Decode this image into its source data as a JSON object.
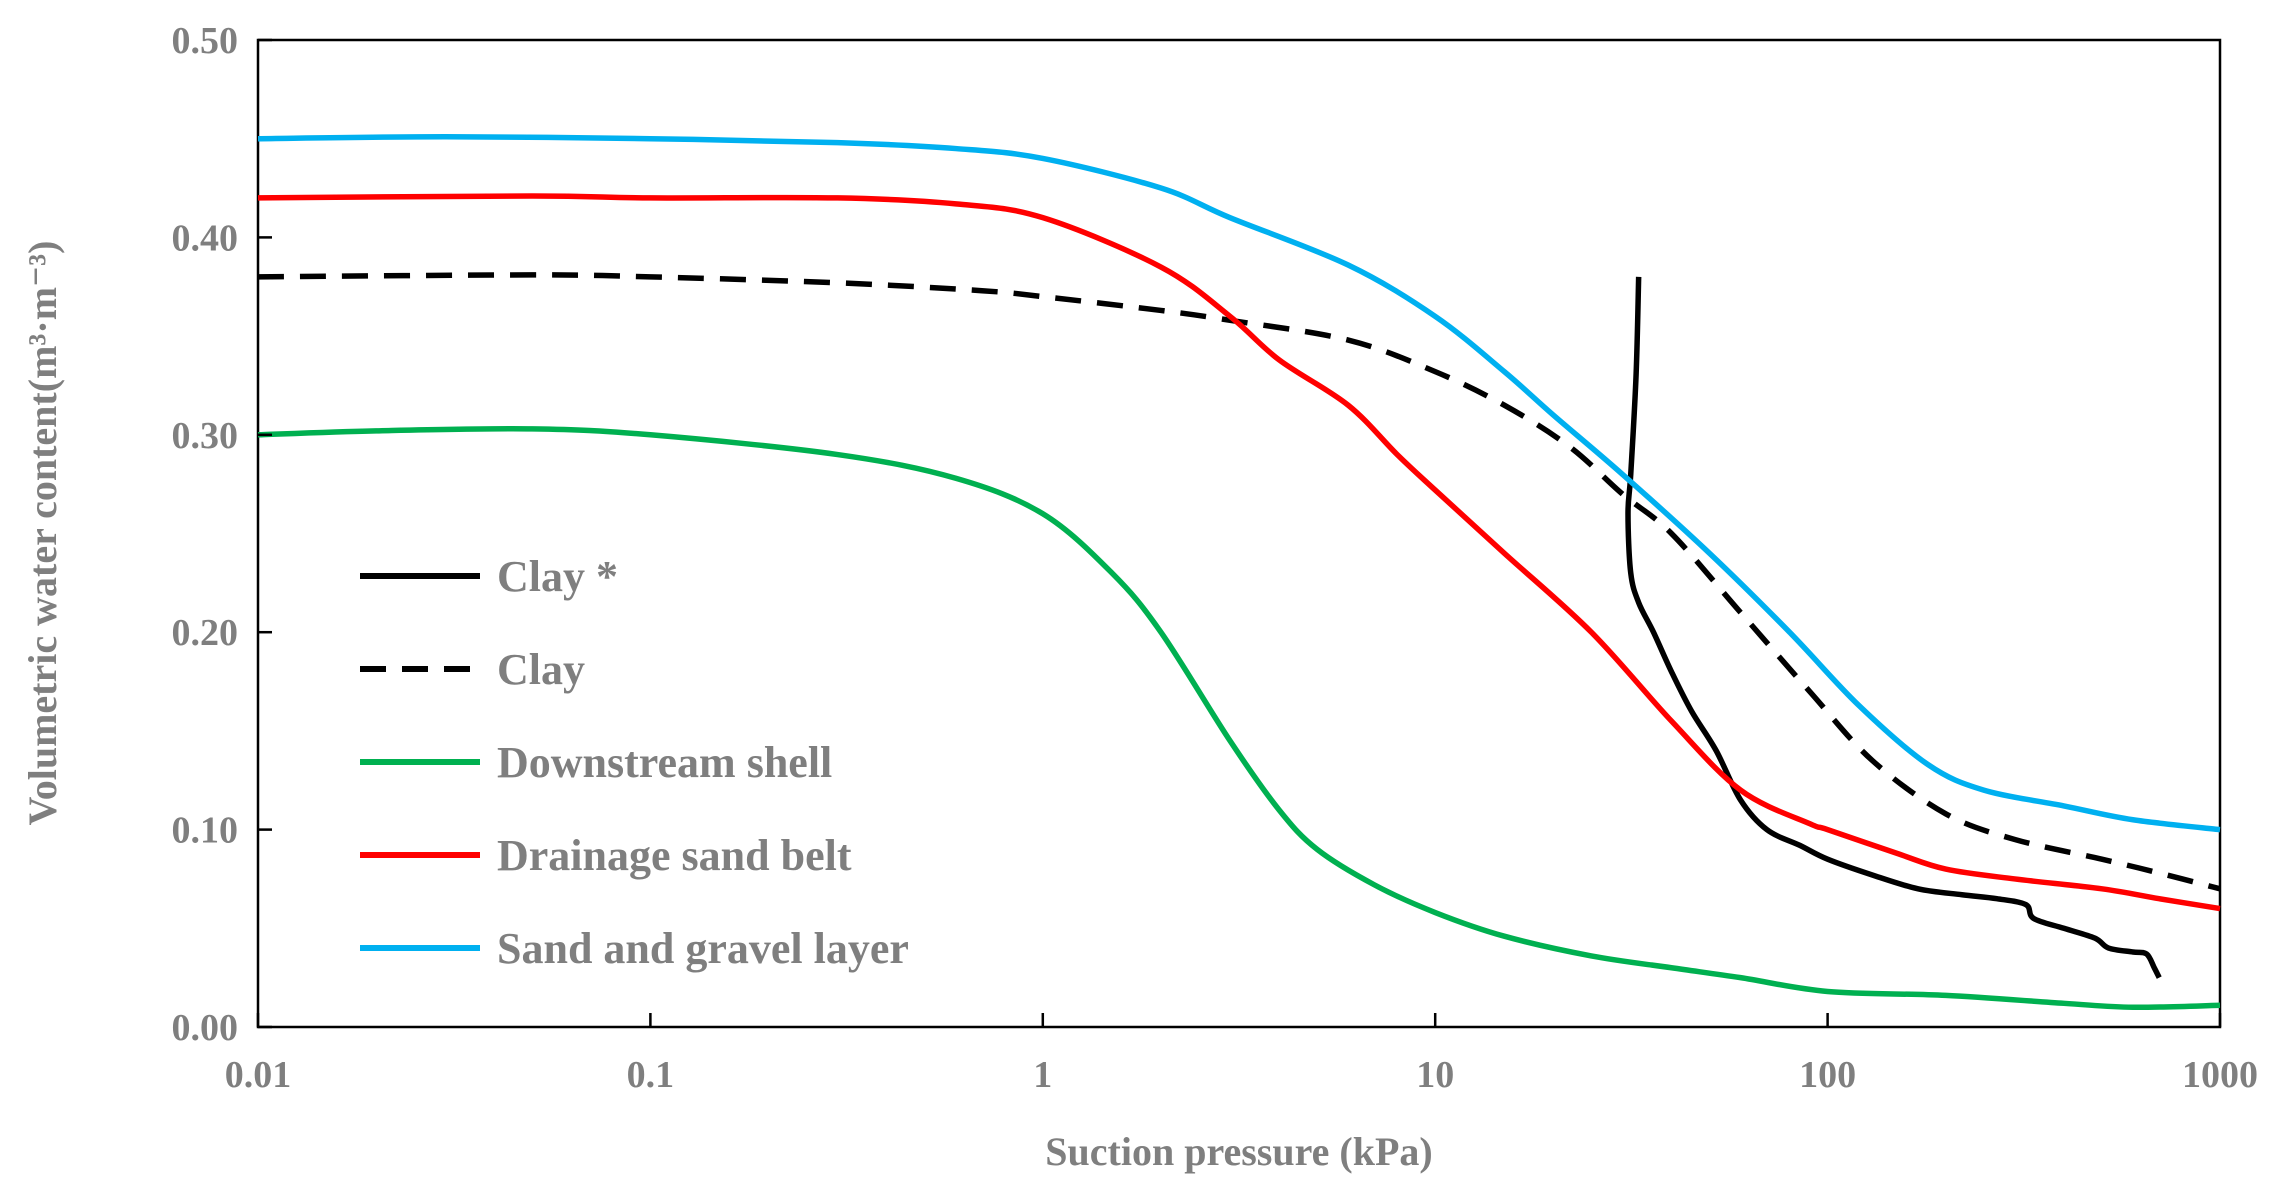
{
  "chart_data": {
    "type": "line",
    "title": "",
    "xlabel": "Suction pressure (kPa)",
    "ylabel": "Volumetric water content(m³·m⁻³)",
    "x_scale": "log",
    "xlim": [
      0.01,
      1000
    ],
    "ylim": [
      0,
      0.5
    ],
    "x_ticks": [
      0.01,
      0.1,
      1,
      10,
      100,
      1000
    ],
    "x_tick_labels": [
      "0.01",
      "0.1",
      "1",
      "10",
      "100",
      "1000"
    ],
    "y_ticks": [
      0,
      0.1,
      0.2,
      0.3,
      0.4,
      0.5
    ],
    "y_tick_labels": [
      "0.00",
      "0.10",
      "0.20",
      "0.30",
      "0.40",
      "0.50"
    ],
    "grid": false,
    "legend_position": "center-left",
    "series": [
      {
        "name": "Clay *",
        "color": "#000000",
        "dash": "solid",
        "points": [
          [
            33,
            0.38
          ],
          [
            32.5,
            0.33
          ],
          [
            31.5,
            0.28
          ],
          [
            31,
            0.26
          ],
          [
            31.5,
            0.23
          ],
          [
            33,
            0.215
          ],
          [
            36,
            0.2
          ],
          [
            40,
            0.18
          ],
          [
            45,
            0.16
          ],
          [
            52,
            0.14
          ],
          [
            60,
            0.115
          ],
          [
            70,
            0.1
          ],
          [
            85,
            0.092
          ],
          [
            100,
            0.085
          ],
          [
            130,
            0.077
          ],
          [
            170,
            0.07
          ],
          [
            220,
            0.067
          ],
          [
            270,
            0.065
          ],
          [
            320,
            0.062
          ],
          [
            335,
            0.055
          ],
          [
            400,
            0.05
          ],
          [
            480,
            0.045
          ],
          [
            520,
            0.04
          ],
          [
            600,
            0.038
          ],
          [
            650,
            0.037
          ],
          [
            680,
            0.03
          ],
          [
            700,
            0.025
          ]
        ]
      },
      {
        "name": "Clay",
        "color": "#000000",
        "dash": "dashed",
        "points": [
          [
            0.01,
            0.38
          ],
          [
            0.05,
            0.381
          ],
          [
            0.1,
            0.38
          ],
          [
            0.3,
            0.377
          ],
          [
            0.7,
            0.373
          ],
          [
            1,
            0.37
          ],
          [
            2,
            0.363
          ],
          [
            3,
            0.358
          ],
          [
            6,
            0.348
          ],
          [
            10,
            0.332
          ],
          [
            15,
            0.315
          ],
          [
            22,
            0.294
          ],
          [
            30,
            0.27
          ],
          [
            40,
            0.25
          ],
          [
            60,
            0.21
          ],
          [
            90,
            0.17
          ],
          [
            130,
            0.135
          ],
          [
            200,
            0.108
          ],
          [
            300,
            0.095
          ],
          [
            500,
            0.085
          ],
          [
            700,
            0.078
          ],
          [
            1000,
            0.07
          ]
        ]
      },
      {
        "name": "Downstream shell",
        "color": "#00b050",
        "dash": "solid",
        "points": [
          [
            0.01,
            0.3
          ],
          [
            0.02,
            0.302
          ],
          [
            0.05,
            0.303
          ],
          [
            0.1,
            0.3
          ],
          [
            0.3,
            0.29
          ],
          [
            0.6,
            0.278
          ],
          [
            1,
            0.26
          ],
          [
            1.5,
            0.23
          ],
          [
            2,
            0.2
          ],
          [
            3,
            0.145
          ],
          [
            4,
            0.11
          ],
          [
            5,
            0.09
          ],
          [
            7,
            0.072
          ],
          [
            10,
            0.058
          ],
          [
            15,
            0.046
          ],
          [
            25,
            0.036
          ],
          [
            40,
            0.03
          ],
          [
            60,
            0.025
          ],
          [
            100,
            0.018
          ],
          [
            200,
            0.016
          ],
          [
            400,
            0.012
          ],
          [
            600,
            0.01
          ],
          [
            1000,
            0.011
          ]
        ]
      },
      {
        "name": "Drainage sand belt",
        "color": "#ff0000",
        "dash": "solid",
        "points": [
          [
            0.01,
            0.42
          ],
          [
            0.05,
            0.421
          ],
          [
            0.1,
            0.42
          ],
          [
            0.3,
            0.42
          ],
          [
            0.6,
            0.417
          ],
          [
            1,
            0.41
          ],
          [
            2,
            0.385
          ],
          [
            3,
            0.36
          ],
          [
            4,
            0.338
          ],
          [
            6,
            0.315
          ],
          [
            8,
            0.29
          ],
          [
            10,
            0.272
          ],
          [
            15,
            0.24
          ],
          [
            25,
            0.2
          ],
          [
            40,
            0.155
          ],
          [
            60,
            0.12
          ],
          [
            90,
            0.103
          ],
          [
            100,
            0.1
          ],
          [
            150,
            0.088
          ],
          [
            200,
            0.08
          ],
          [
            300,
            0.075
          ],
          [
            500,
            0.07
          ],
          [
            700,
            0.065
          ],
          [
            1000,
            0.06
          ]
        ]
      },
      {
        "name": "Sand and gravel layer",
        "color": "#00b0f0",
        "dash": "solid",
        "points": [
          [
            0.01,
            0.45
          ],
          [
            0.03,
            0.451
          ],
          [
            0.1,
            0.45
          ],
          [
            0.3,
            0.448
          ],
          [
            0.6,
            0.445
          ],
          [
            1,
            0.44
          ],
          [
            2,
            0.425
          ],
          [
            3,
            0.41
          ],
          [
            6,
            0.386
          ],
          [
            10,
            0.36
          ],
          [
            15,
            0.332
          ],
          [
            20,
            0.31
          ],
          [
            30,
            0.28
          ],
          [
            50,
            0.24
          ],
          [
            80,
            0.2
          ],
          [
            120,
            0.163
          ],
          [
            180,
            0.133
          ],
          [
            250,
            0.12
          ],
          [
            400,
            0.112
          ],
          [
            600,
            0.105
          ],
          [
            1000,
            0.1
          ]
        ]
      }
    ]
  }
}
